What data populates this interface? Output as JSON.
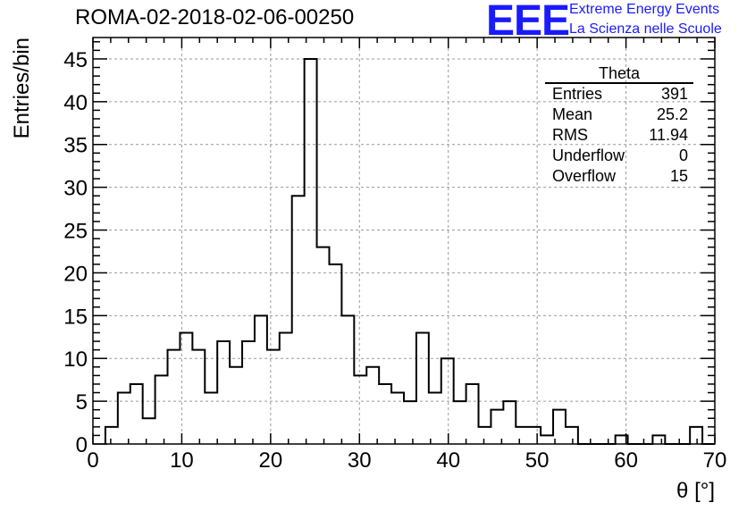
{
  "header": {
    "title": "ROMA-02-2018-02-06-00250",
    "logo": "EEE",
    "logo_line1": "Extreme Energy Events",
    "logo_line2": "La Scienza nelle Scuole"
  },
  "stats": {
    "title": "Theta",
    "rows": [
      {
        "label": "Entries",
        "value": "391"
      },
      {
        "label": "Mean",
        "value": "25.2"
      },
      {
        "label": "RMS",
        "value": "11.94"
      },
      {
        "label": "Underflow",
        "value": "0"
      },
      {
        "label": "Overflow",
        "value": "15"
      }
    ]
  },
  "colors": {
    "logo": "#1a1aff",
    "line": "#000000",
    "grid": "#9a9a9a"
  },
  "chart_data": {
    "type": "bar",
    "style": "step histogram",
    "title": "ROMA-02-2018-02-06-00250",
    "xlabel": "θ [°]",
    "ylabel": "Entries/bin",
    "xlim": [
      0,
      70
    ],
    "ylim": [
      0,
      47.5
    ],
    "grid": true,
    "bin_width": 1.4,
    "bin_start": 1.4,
    "x_ticks": [
      0,
      10,
      20,
      30,
      40,
      50,
      60,
      70
    ],
    "y_ticks": [
      0,
      5,
      10,
      15,
      20,
      25,
      30,
      35,
      40,
      45
    ],
    "values": [
      2,
      6,
      7,
      3,
      8,
      11,
      13,
      11,
      6,
      12,
      9,
      12,
      15,
      11,
      13,
      29,
      45,
      23,
      21,
      15,
      8,
      9,
      7,
      6,
      5,
      13,
      6,
      10,
      5,
      7,
      2,
      4,
      5,
      2,
      2,
      1,
      4,
      2,
      0,
      0,
      0,
      1,
      0,
      0,
      1,
      0,
      0,
      2,
      0
    ]
  }
}
